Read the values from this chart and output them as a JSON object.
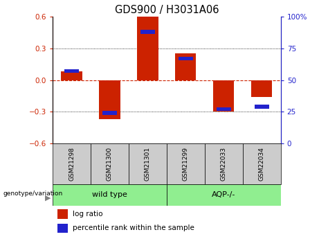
{
  "title": "GDS900 / H3031A06",
  "samples": [
    "GSM21298",
    "GSM21300",
    "GSM21301",
    "GSM21299",
    "GSM22033",
    "GSM22034"
  ],
  "log_ratio": [
    0.08,
    -0.37,
    0.6,
    0.25,
    -0.3,
    -0.16
  ],
  "percentile_rank": [
    57,
    24,
    88,
    67,
    27,
    29
  ],
  "groups": [
    {
      "label": "wild type",
      "n": 3,
      "color": "#90ee90"
    },
    {
      "label": "AQP-/-",
      "n": 3,
      "color": "#90ee90"
    }
  ],
  "bar_color_red": "#cc2200",
  "bar_color_blue": "#2222cc",
  "ylim_left": [
    -0.6,
    0.6
  ],
  "ylim_right": [
    0,
    100
  ],
  "yticks_left": [
    -0.6,
    -0.3,
    0.0,
    0.3,
    0.6
  ],
  "yticks_right": [
    0,
    25,
    50,
    75,
    100
  ],
  "hline_color": "#cc2200",
  "dotline_color": "#000000",
  "bg_color": "#ffffff",
  "plot_bg": "#ffffff",
  "tick_label_color_left": "#cc2200",
  "tick_label_color_right": "#2222cc",
  "label_box_color": "#cccccc",
  "legend_log_ratio": "log ratio",
  "legend_percentile": "percentile rank within the sample",
  "genotype_label": "genotype/variation",
  "bar_width": 0.55
}
